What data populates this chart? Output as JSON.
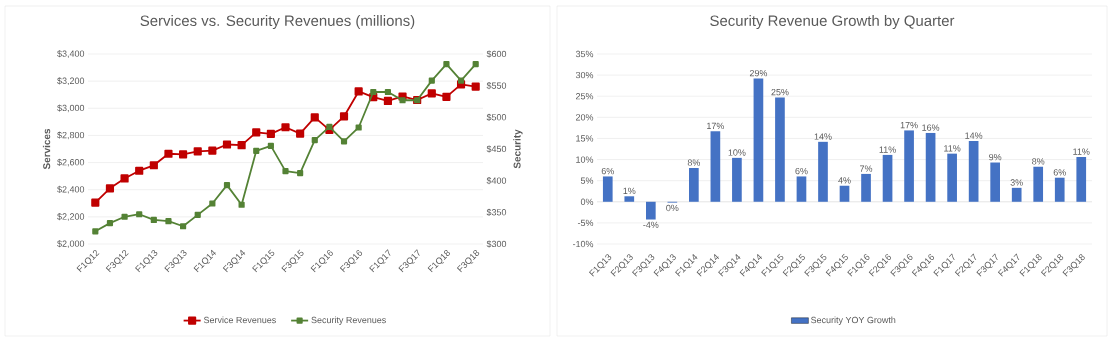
{
  "chart_data": [
    {
      "type": "line",
      "title": "Services vs. Security Revenues (millions)",
      "ylabel": "Services",
      "y2label": "Security",
      "categories": [
        "F1Q12",
        null,
        "F3Q12",
        null,
        "F1Q13",
        null,
        "F3Q13",
        null,
        "F1Q14",
        null,
        "F3Q14",
        null,
        "F1Q15",
        null,
        "F3Q15",
        null,
        "F1Q16",
        null,
        "F3Q16",
        null,
        "F1Q17",
        null,
        "F3Q17",
        null,
        "F1Q18",
        null,
        "F3Q18"
      ],
      "series": [
        {
          "name": "Service Revenues",
          "color": "#c00000",
          "values": [
            2305,
            2410,
            2483,
            2540,
            2580,
            2665,
            2660,
            2683,
            2688,
            2733,
            2728,
            2823,
            2811,
            2860,
            2813,
            2933,
            2841,
            2940,
            3124,
            3082,
            3054,
            3087,
            3061,
            3110,
            3084,
            3176,
            3160
          ]
        },
        {
          "name": "Security Revenues",
          "color": "#548235",
          "axis": "y2",
          "values": [
            320,
            333,
            343,
            347,
            338,
            336,
            328,
            346,
            364,
            393,
            362,
            447,
            455,
            415,
            412,
            464,
            485,
            462,
            484,
            540,
            540,
            527,
            527,
            558,
            584,
            558,
            584
          ]
        }
      ],
      "ylim": [
        2000,
        3400
      ],
      "yticks": [
        {
          "value": 2000,
          "label": "$2,000"
        },
        {
          "value": 2200,
          "label": "$2,200"
        },
        {
          "value": 2400,
          "label": "$2,400"
        },
        {
          "value": 2600,
          "label": "$2,600"
        },
        {
          "value": 2800,
          "label": "$2,800"
        },
        {
          "value": 3000,
          "label": "$3,000"
        },
        {
          "value": 3200,
          "label": "$3,200"
        },
        {
          "value": 3400,
          "label": "$3,400"
        }
      ],
      "y2lim": [
        300,
        600
      ],
      "y2ticks": [
        {
          "value": 300,
          "label": "$300"
        },
        {
          "value": 350,
          "label": "$350"
        },
        {
          "value": 400,
          "label": "$400"
        },
        {
          "value": 450,
          "label": "$450"
        },
        {
          "value": 500,
          "label": "$500"
        },
        {
          "value": 550,
          "label": "$550"
        },
        {
          "value": 600,
          "label": "$600"
        }
      ],
      "grid": "y",
      "legend": "bottom",
      "marker": "square"
    },
    {
      "type": "bar",
      "title": "Security Revenue Growth by Quarter",
      "categories": [
        "F1Q13",
        "F2Q13",
        "F3Q13",
        "F4Q13",
        "F1Q14",
        "F2Q14",
        "F3Q14",
        "F4Q14",
        "F1Q15",
        "F2Q15",
        "F3Q15",
        "F4Q15",
        "F1Q16",
        "F2Q16",
        "F3Q16",
        "F4Q16",
        "F1Q17",
        "F2Q17",
        "F3Q17",
        "F4Q17",
        "F1Q18",
        "F2Q18",
        "F3Q18"
      ],
      "series": [
        {
          "name": "Security YOY Growth",
          "color": "#4472c4",
          "values": [
            6.0,
            1.3,
            -4.2,
            -0.2,
            8.0,
            16.7,
            10.4,
            29.2,
            24.7,
            6.0,
            14.2,
            3.8,
            6.6,
            11.1,
            16.9,
            16.3,
            11.4,
            14.4,
            9.3,
            3.3,
            8.3,
            5.7,
            10.6
          ],
          "value_labels": [
            "6%",
            "1%",
            "-4%",
            "0%",
            "8%",
            "17%",
            "10%",
            "29%",
            "25%",
            "6%",
            "14%",
            "4%",
            "7%",
            "11%",
            "17%",
            "16%",
            "11%",
            "14%",
            "9%",
            "3%",
            "8%",
            "6%",
            "11%"
          ]
        }
      ],
      "ylim": [
        -10,
        35
      ],
      "yticks": [
        {
          "value": -10,
          "label": "-10%"
        },
        {
          "value": -5,
          "label": "-5%"
        },
        {
          "value": 0,
          "label": "0%"
        },
        {
          "value": 5,
          "label": "5%"
        },
        {
          "value": 10,
          "label": "10%"
        },
        {
          "value": 15,
          "label": "15%"
        },
        {
          "value": 20,
          "label": "20%"
        },
        {
          "value": 25,
          "label": "25%"
        },
        {
          "value": 30,
          "label": "30%"
        },
        {
          "value": 35,
          "label": "35%"
        }
      ],
      "grid": "y",
      "legend": "bottom"
    }
  ]
}
